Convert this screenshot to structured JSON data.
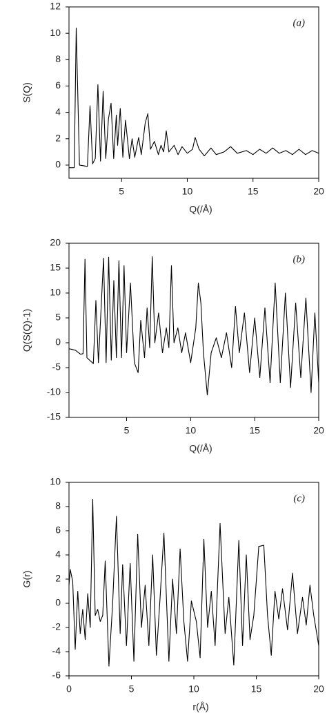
{
  "chart_data": [
    {
      "type": "line",
      "ylabel": "S(Q)",
      "xlabel": "Q(/Å)",
      "annotation": "(a)",
      "color": "#000000",
      "xlim": [
        1,
        20
      ],
      "ylim": [
        -1,
        12
      ],
      "xticks": [
        5,
        10,
        15,
        20
      ],
      "yticks": [
        0,
        2,
        4,
        6,
        8,
        10,
        12
      ],
      "x": [
        1,
        1.4,
        1.55,
        1.8,
        2.4,
        2.6,
        2.8,
        3.0,
        3.2,
        3.4,
        3.6,
        3.8,
        4.0,
        4.2,
        4.4,
        4.6,
        4.7,
        4.9,
        5.1,
        5.3,
        5.6,
        5.8,
        6.0,
        6.3,
        6.5,
        6.8,
        7.0,
        7.2,
        7.5,
        7.8,
        8.0,
        8.2,
        8.4,
        8.6,
        9.0,
        9.3,
        9.6,
        10.0,
        10.4,
        10.6,
        10.9,
        11.3,
        11.8,
        12.2,
        12.8,
        13.3,
        13.8,
        14.5,
        15.0,
        15.5,
        16.0,
        16.5,
        17.0,
        17.5,
        18.0,
        18.5,
        19.0,
        19.5,
        20
      ],
      "values": [
        -0.2,
        -0.2,
        10.4,
        0,
        -0.1,
        4.5,
        0.1,
        0.5,
        6.1,
        0.3,
        5.6,
        0.5,
        3.5,
        4.7,
        0.5,
        3.8,
        1.5,
        4.3,
        0.6,
        3.4,
        0.5,
        2.0,
        0.6,
        2.1,
        0.8,
        3.2,
        3.9,
        1.2,
        1.8,
        0.8,
        1.5,
        1.0,
        2.6,
        1.0,
        1.5,
        0.8,
        1.4,
        0.9,
        1.2,
        2.1,
        1.2,
        0.7,
        1.3,
        0.8,
        1.0,
        1.4,
        0.9,
        1.1,
        0.8,
        1.2,
        0.9,
        1.3,
        0.9,
        1.1,
        0.8,
        1.2,
        0.8,
        1.1,
        0.9
      ]
    },
    {
      "type": "line",
      "ylabel": "Q(S(Q)-1)",
      "xlabel": "Q(/Å)",
      "annotation": "(b)",
      "color": "#000000",
      "xlim": [
        0.5,
        20
      ],
      "ylim": [
        -15,
        20
      ],
      "xticks": [
        5,
        10,
        15,
        20
      ],
      "yticks": [
        -15,
        -10,
        -5,
        0,
        5,
        10,
        15,
        20
      ],
      "x": [
        0.5,
        1.0,
        1.4,
        1.6,
        1.75,
        1.9,
        2.4,
        2.6,
        2.8,
        3.2,
        3.4,
        3.6,
        3.8,
        4.0,
        4.2,
        4.4,
        4.6,
        4.8,
        5.0,
        5.3,
        5.6,
        5.9,
        6.1,
        6.4,
        6.6,
        6.8,
        7.0,
        7.2,
        7.5,
        7.8,
        8.1,
        8.3,
        8.5,
        8.7,
        9.0,
        9.3,
        9.6,
        10.0,
        10.4,
        10.6,
        10.8,
        11.0,
        11.3,
        11.6,
        12.0,
        12.4,
        12.8,
        13.2,
        13.5,
        13.8,
        14.2,
        14.6,
        15.0,
        15.4,
        15.8,
        16.2,
        16.6,
        17.0,
        17.4,
        17.8,
        18.2,
        18.6,
        19.0,
        19.4,
        19.7,
        20
      ],
      "values": [
        -1.2,
        -1.5,
        -2.3,
        -2.2,
        16.8,
        -3,
        -4.2,
        8.5,
        -4,
        17,
        -4,
        17.2,
        -3.5,
        12.5,
        -3,
        16.5,
        -3,
        15.5,
        -2,
        12,
        -4,
        -6,
        4.5,
        -3,
        7,
        -1,
        17.3,
        0,
        6,
        -2,
        3,
        -1,
        15.5,
        0,
        3,
        -2,
        2,
        -4,
        3,
        12,
        8,
        -2,
        -10.5,
        -2,
        1,
        -3,
        2,
        -5,
        7.3,
        -2,
        6,
        -6,
        5,
        -7,
        7,
        -8,
        12,
        -8,
        10,
        -9,
        8,
        -7,
        9,
        -10,
        6,
        -8
      ]
    },
    {
      "type": "line",
      "ylabel": "G(r)",
      "xlabel": "r(Å)",
      "annotation": "(c)",
      "color": "#000000",
      "xlim": [
        0,
        20
      ],
      "ylim": [
        -6,
        10
      ],
      "xticks": [
        0,
        5,
        10,
        15,
        20
      ],
      "yticks": [
        -6,
        -4,
        -2,
        0,
        2,
        4,
        6,
        8,
        10
      ],
      "x": [
        0,
        0.1,
        0.3,
        0.5,
        0.7,
        0.9,
        1.1,
        1.3,
        1.5,
        1.7,
        1.9,
        2.1,
        2.3,
        2.5,
        2.7,
        2.9,
        3.2,
        3.5,
        3.8,
        4.1,
        4.3,
        4.6,
        4.9,
        5.2,
        5.5,
        5.8,
        6.1,
        6.4,
        6.7,
        7.0,
        7.3,
        7.6,
        8.0,
        8.3,
        8.6,
        8.9,
        9.2,
        9.5,
        9.8,
        10.2,
        10.5,
        10.8,
        11.1,
        11.4,
        11.7,
        12.1,
        12.5,
        12.8,
        13.2,
        13.6,
        13.9,
        14.2,
        14.5,
        14.8,
        15.2,
        15.6,
        15.9,
        16.2,
        16.5,
        16.8,
        17.1,
        17.5,
        17.9,
        18.3,
        18.7,
        19.0,
        19.3,
        19.6,
        20
      ],
      "values": [
        1.5,
        2.8,
        1.8,
        -3.8,
        1.0,
        -2.5,
        -0.5,
        -3,
        0.8,
        -2,
        8.6,
        -1,
        -0.5,
        -1.5,
        -1,
        3.5,
        -5.2,
        0,
        7.2,
        -2.5,
        3.2,
        -3.5,
        3.3,
        -4.8,
        5.7,
        -2,
        1.5,
        -3.5,
        4,
        -4.3,
        0.5,
        5.8,
        -4.8,
        2,
        -2.5,
        4.5,
        -1.5,
        -4.8,
        0.2,
        -1.5,
        -4.5,
        5.3,
        -2,
        1,
        -3.5,
        6.6,
        -2.5,
        0.5,
        -5.1,
        5.2,
        -3.5,
        4,
        -3,
        -1,
        4.7,
        4.8,
        -1,
        -4.3,
        1,
        -1.3,
        1.2,
        -2.2,
        2.5,
        -2.5,
        0.5,
        -1.8,
        1.5,
        -1,
        -3.5
      ]
    }
  ]
}
